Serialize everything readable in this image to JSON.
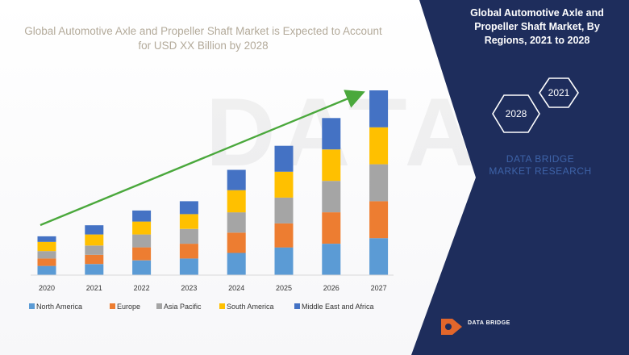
{
  "chart_data": {
    "type": "bar",
    "stacked": true,
    "title": "Global Automotive Axle and Propeller Shaft Market is Expected to Account for USD XX Billion by 2028",
    "categories": [
      "2020",
      "2021",
      "2022",
      "2023",
      "2024",
      "2025",
      "2026",
      "2027"
    ],
    "series": [
      {
        "name": "North America",
        "color": "#5b9bd5",
        "values": [
          5,
          6,
          8,
          9,
          12,
          15,
          17,
          20
        ]
      },
      {
        "name": "Europe",
        "color": "#ed7d31",
        "values": [
          4,
          5,
          7,
          8,
          11,
          13,
          17,
          20
        ]
      },
      {
        "name": "Asia Pacific",
        "color": "#a5a5a5",
        "values": [
          4,
          5,
          7,
          8,
          11,
          14,
          17,
          20
        ]
      },
      {
        "name": "South America",
        "color": "#ffc000",
        "values": [
          5,
          6,
          7,
          8,
          12,
          14,
          17,
          20
        ]
      },
      {
        "name": "Middle East and Africa",
        "color": "#4472c4",
        "values": [
          3,
          5,
          6,
          7,
          11,
          14,
          17,
          20
        ]
      }
    ],
    "ylim": [
      0,
      100
    ],
    "grid": false,
    "legend_position": "bottom",
    "trend_arrow": true,
    "trend_arrow_color": "#4aa83c"
  },
  "panel": {
    "title": "Global Automotive Axle and Propeller Shaft Market, By Regions, 2021 to 2028",
    "hex_years": [
      "2021",
      "2028"
    ],
    "brand": "DATA BRIDGE MARKET RESEARCH",
    "logo_text": "DATA BRIDGE",
    "background_color": "#1e2d5c",
    "accent_color": "#ffffff"
  }
}
